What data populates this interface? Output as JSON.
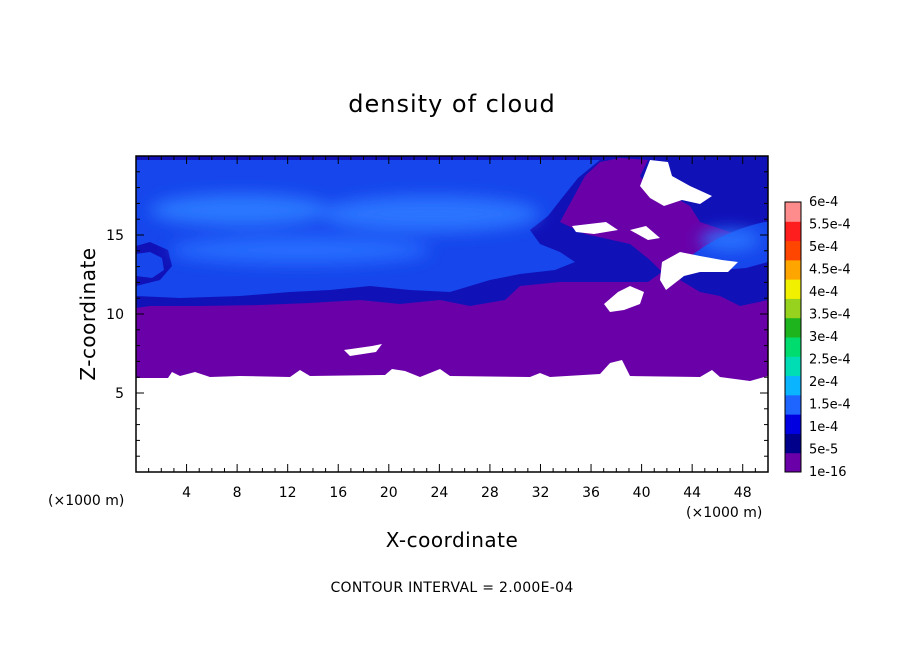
{
  "chart_data": {
    "type": "heatmap",
    "title": "density of cloud",
    "xlabel": "X-coordinate",
    "ylabel": "Z-coordinate",
    "x_unit": "(×1000 m)",
    "y_unit": "(×1000 m)",
    "xlim": [
      0,
      50
    ],
    "ylim": [
      0,
      20
    ],
    "x_ticks": [
      4,
      8,
      12,
      16,
      20,
      24,
      28,
      32,
      36,
      40,
      44,
      48
    ],
    "y_ticks": [
      5,
      10,
      15
    ],
    "contour_interval_text": "CONTOUR INTERVAL = 2.000E-04",
    "colorbar": {
      "levels": [
        "1e-16",
        "5e-5",
        "1e-4",
        "1.5e-4",
        "2e-4",
        "2.5e-4",
        "3e-4",
        "3.5e-4",
        "4e-4",
        "4.5e-4",
        "5e-4",
        "5.5e-4",
        "6e-4"
      ],
      "colors": [
        "#6a00a8",
        "#00008b",
        "#0000e0",
        "#1e64ff",
        "#0ab4ff",
        "#00dcb4",
        "#00dc6e",
        "#1eb41e",
        "#96d21e",
        "#f0f000",
        "#ffa500",
        "#ff4600",
        "#ff1e1e",
        "#ff8c8c"
      ]
    },
    "regions": [
      {
        "zone": "z < 6",
        "value": "below 1e-16 (no cloud)"
      },
      {
        "zone": "6 < z < 10.5",
        "value": "1e-16 to 5e-5"
      },
      {
        "zone": "10.5 < z < 19.7",
        "value": "5e-5 to 1.5e-4"
      }
    ]
  }
}
